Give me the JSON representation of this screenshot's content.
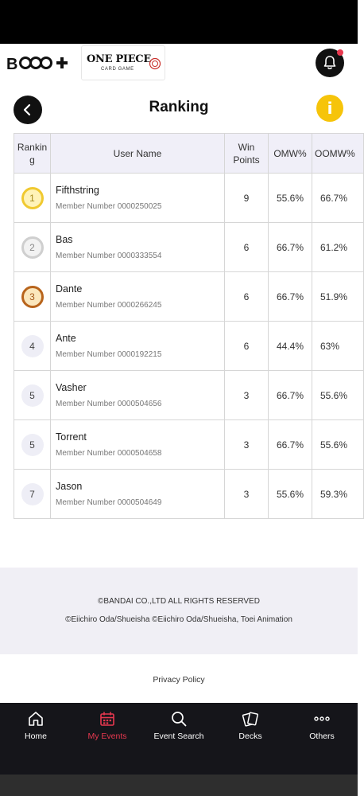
{
  "header": {
    "brand_logo": "bandai-bplus-logo",
    "game_logo": {
      "title": "ONE PIECE",
      "subtitle": "CARD GAME"
    },
    "bell_icon": "bell-icon",
    "notification_color": "#e8384f"
  },
  "page": {
    "title": "Ranking",
    "back_icon": "chevron-left-icon",
    "info_label": "i",
    "info_color": "#f6c40a"
  },
  "table": {
    "columns": [
      "Ranking",
      "User Name",
      "Win Points",
      "OMW%",
      "OOMW%"
    ],
    "rows": [
      {
        "rank": "1",
        "rank_style": "gold",
        "name": "Fifthstring",
        "member": "Member Number 0000250025",
        "win_points": "9",
        "omw": "55.6%",
        "oomw": "66.7%"
      },
      {
        "rank": "2",
        "rank_style": "silver",
        "name": "Bas",
        "member": "Member Number 0000333554",
        "win_points": "6",
        "omw": "66.7%",
        "oomw": "61.2%"
      },
      {
        "rank": "3",
        "rank_style": "bronze",
        "name": "Dante",
        "member": "Member Number 0000266245",
        "win_points": "6",
        "omw": "66.7%",
        "oomw": "51.9%"
      },
      {
        "rank": "4",
        "rank_style": "plain",
        "name": "Ante",
        "member": "Member Number 0000192215",
        "win_points": "6",
        "omw": "44.4%",
        "oomw": "63%"
      },
      {
        "rank": "5",
        "rank_style": "plain",
        "name": "Vasher",
        "member": "Member Number 0000504656",
        "win_points": "3",
        "omw": "66.7%",
        "oomw": "55.6%"
      },
      {
        "rank": "5",
        "rank_style": "plain",
        "name": "Torrent",
        "member": "Member Number 0000504658",
        "win_points": "3",
        "omw": "66.7%",
        "oomw": "55.6%"
      },
      {
        "rank": "7",
        "rank_style": "plain",
        "name": "Jason",
        "member": "Member Number 0000504649",
        "win_points": "3",
        "omw": "55.6%",
        "oomw": "59.3%"
      }
    ]
  },
  "footer": {
    "copyright1": "©BANDAI CO.,LTD ALL RIGHTS RESERVED",
    "copyright2": "©Eiichiro Oda/Shueisha ©Eiichiro Oda/Shueisha, Toei Animation",
    "privacy_link": "Privacy Policy"
  },
  "nav": {
    "active_color": "#e8384f",
    "items": [
      {
        "label": "Home",
        "icon": "home-icon",
        "active": false
      },
      {
        "label": "My Events",
        "icon": "calendar-icon",
        "active": true
      },
      {
        "label": "Event Search",
        "icon": "search-icon",
        "active": false
      },
      {
        "label": "Decks",
        "icon": "cards-icon",
        "active": false
      },
      {
        "label": "Others",
        "icon": "more-icon",
        "active": false
      }
    ]
  }
}
